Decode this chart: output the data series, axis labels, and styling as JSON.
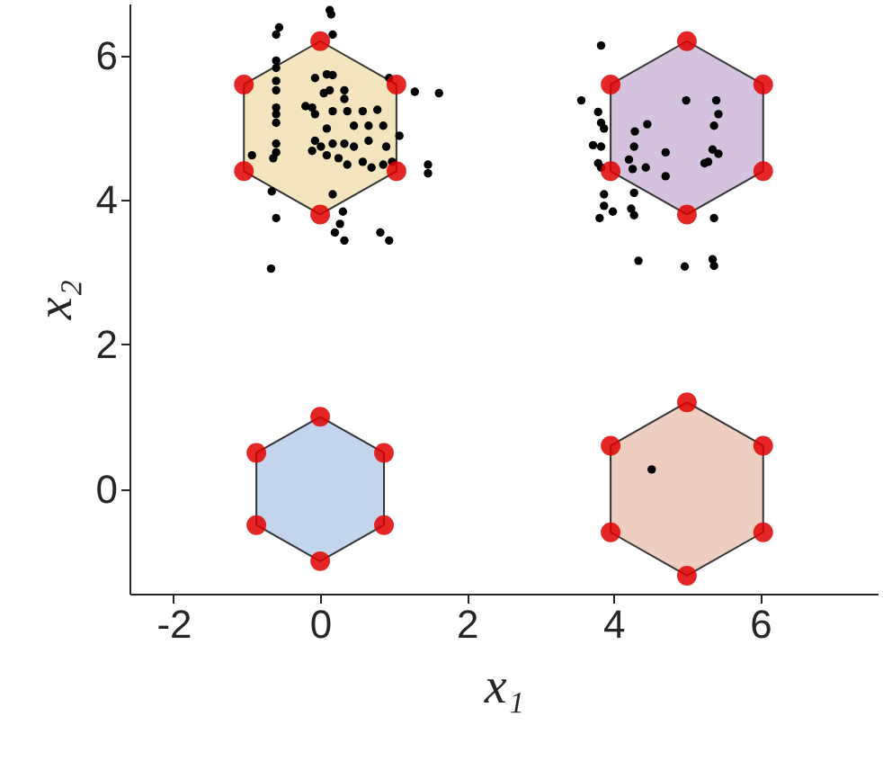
{
  "chart_data": {
    "type": "scatter",
    "xlabel": "x₁",
    "ylabel": "x₂",
    "xlim": [
      -2.6,
      7.6
    ],
    "ylim": [
      -1.45,
      6.72
    ],
    "xticks": [
      -2,
      0,
      2,
      4,
      6
    ],
    "yticks": [
      0,
      2,
      4,
      6
    ],
    "grid": false,
    "series": [
      {
        "color": "#000000",
        "marker": "circle",
        "x": [
          0.13,
          0.15,
          -0.56,
          -0.6,
          0.17,
          -0.6,
          -0.6,
          0.94,
          1.29,
          1.62,
          1.47,
          1.47,
          1.08,
          -0.66,
          -0.6,
          0.31,
          0.27,
          0.2,
          0.33,
          0.82,
          0.94,
          -0.67,
          -0.6,
          -0.6,
          -0.6,
          -0.6,
          -0.6,
          -0.07,
          0.09,
          0.17,
          0.13,
          0.05,
          0.33,
          0.33,
          -0.2,
          -0.11,
          -0.07,
          0.17,
          0.37,
          0.58,
          0.78,
          0.09,
          0.46,
          0.66,
          0.86,
          -0.07,
          0.01,
          0.17,
          0.33,
          0.46,
          0.66,
          0.9,
          -0.6,
          -0.6,
          -0.64,
          -0.93,
          -0.11,
          0.09,
          0.25,
          0.37,
          0.58,
          0.7,
          0.86,
          0.98,
          0.17,
          3.83,
          3.56,
          3.79,
          3.83,
          3.87,
          3.72,
          3.83,
          3.79,
          3.83,
          3.87,
          3.87,
          3.99,
          3.81,
          4.24,
          4.28,
          4.28,
          5.37,
          4.34,
          4.97,
          5.35,
          5.37,
          4.99,
          5.4,
          5.43,
          5.37,
          4.46,
          4.29,
          4.28,
          4.71,
          5.35,
          5.43,
          4.21,
          4.44,
          4.26,
          4.71,
          5.24,
          5.29,
          4.52
        ],
        "values": [
          6.63,
          6.57,
          6.39,
          6.29,
          6.29,
          5.93,
          5.83,
          5.69,
          5.5,
          5.48,
          4.49,
          4.37,
          4.89,
          4.12,
          3.75,
          3.84,
          3.67,
          3.55,
          3.44,
          3.55,
          3.44,
          3.05,
          5.65,
          5.52,
          5.28,
          5.19,
          5.07,
          5.69,
          5.74,
          5.73,
          5.52,
          5.48,
          5.52,
          5.4,
          5.3,
          5.28,
          5.19,
          5.23,
          5.23,
          5.23,
          5.25,
          4.99,
          5.03,
          5.03,
          5.03,
          4.82,
          4.74,
          4.78,
          4.78,
          4.74,
          4.82,
          4.74,
          4.78,
          4.66,
          4.58,
          4.62,
          4.68,
          4.62,
          4.58,
          4.49,
          4.53,
          4.45,
          4.49,
          4.53,
          4.08,
          6.14,
          5.38,
          5.22,
          5.07,
          4.99,
          4.76,
          4.74,
          4.51,
          4.45,
          4.08,
          3.92,
          3.84,
          3.75,
          3.88,
          3.79,
          4.1,
          3.75,
          3.16,
          3.08,
          3.18,
          3.09,
          5.38,
          5.38,
          5.19,
          5.03,
          5.05,
          4.95,
          4.74,
          4.66,
          4.7,
          4.64,
          4.56,
          4.45,
          4.43,
          4.33,
          4.51,
          4.53,
          0.27
        ]
      },
      {
        "type": "area",
        "color": "#b3cbe8",
        "x": [
          0,
          0.87,
          0.87,
          0,
          -0.87,
          -0.87,
          0
        ],
        "values": [
          1,
          0.5,
          -0.5,
          -1,
          -0.5,
          0.5,
          1
        ]
      },
      {
        "type": "area",
        "color": "#e8c2b0",
        "x": [
          5,
          6.04,
          6.04,
          5,
          3.96,
          3.96,
          5
        ],
        "values": [
          1.2,
          0.6,
          -0.6,
          -1.2,
          -0.6,
          0.6,
          1.2
        ]
      },
      {
        "type": "area",
        "color": "#f2dfae",
        "x": [
          0,
          1.04,
          1.04,
          0,
          -1.04,
          -1.04,
          0
        ],
        "values": [
          6.2,
          5.6,
          4.4,
          3.8,
          4.4,
          5.6,
          6.2
        ]
      },
      {
        "type": "area",
        "color": "#c9b3d6",
        "x": [
          5,
          6.04,
          6.04,
          5,
          3.96,
          3.96,
          5
        ],
        "values": [
          6.2,
          5.6,
          4.4,
          3.8,
          4.4,
          5.6,
          6.2
        ]
      },
      {
        "color": "#e00000",
        "marker": "circle",
        "x": [
          0,
          0.87,
          0.87,
          0,
          -0.87,
          -0.87,
          5,
          6.04,
          6.04,
          5,
          3.96,
          3.96,
          0,
          1.04,
          1.04,
          0,
          -1.04,
          -1.04,
          5,
          6.04,
          6.04,
          5,
          3.96,
          3.96
        ],
        "values": [
          1,
          0.5,
          -0.5,
          -1,
          -0.5,
          0.5,
          1.2,
          0.6,
          -0.6,
          -1.2,
          -0.6,
          0.6,
          6.2,
          5.6,
          4.4,
          3.8,
          4.4,
          5.6,
          6.2,
          5.6,
          4.4,
          3.8,
          4.4,
          5.6
        ]
      }
    ]
  }
}
